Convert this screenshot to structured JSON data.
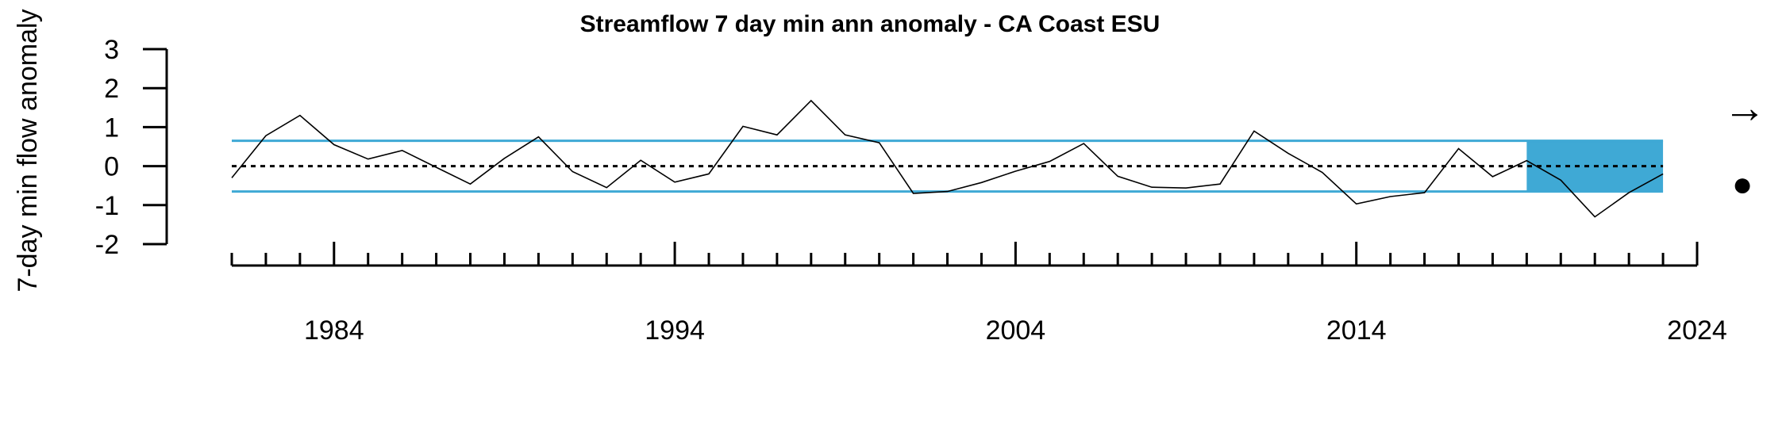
{
  "chart_data": {
    "type": "line",
    "title": "Streamflow 7 day min ann anomaly - CA Coast ESU",
    "xlabel": "",
    "ylabel": "7-day min flow anomaly",
    "xlim": [
      1981,
      2024
    ],
    "ylim": [
      -2,
      3
    ],
    "y_ticks": [
      3,
      2,
      1,
      0,
      -1,
      -2
    ],
    "x_major_ticks": [
      1984,
      1994,
      2004,
      2014,
      2024
    ],
    "x_minor_ticks": [
      1981,
      1982,
      1983,
      1984,
      1985,
      1986,
      1987,
      1988,
      1989,
      1990,
      1991,
      1992,
      1993,
      1994,
      1995,
      1996,
      1997,
      1998,
      1999,
      2000,
      2001,
      2002,
      2003,
      2004,
      2005,
      2006,
      2007,
      2008,
      2009,
      2010,
      2011,
      2012,
      2013,
      2014,
      2015,
      2016,
      2017,
      2018,
      2019,
      2020,
      2021,
      2022,
      2023,
      2024
    ],
    "series": [
      {
        "x": [
          1981,
          1982,
          1983,
          1984,
          1985,
          1986,
          1987,
          1988,
          1989,
          1990,
          1991,
          1992,
          1993,
          1994,
          1995,
          1996,
          1997,
          1998,
          1999,
          2000,
          2001,
          2002,
          2003,
          2004,
          2005,
          2006,
          2007,
          2008,
          2009,
          2010,
          2011,
          2012,
          2013,
          2014,
          2015,
          2016,
          2017,
          2018,
          2019,
          2020,
          2021,
          2022,
          2023
        ],
        "values": [
          -0.3,
          0.78,
          1.3,
          0.55,
          0.18,
          0.4,
          -0.03,
          -0.46,
          0.2,
          0.75,
          -0.14,
          -0.55,
          0.15,
          -0.41,
          -0.2,
          1.02,
          0.8,
          1.68,
          0.8,
          0.6,
          -0.7,
          -0.65,
          -0.42,
          -0.13,
          0.12,
          0.58,
          -0.26,
          -0.54,
          -0.56,
          -0.46,
          0.9,
          0.33,
          -0.16,
          -0.97,
          -0.78,
          -0.68,
          0.45,
          -0.27,
          0.14,
          -0.36,
          -1.3,
          -0.68,
          -0.2
        ]
      }
    ],
    "mean_line": 0,
    "sd_band": [
      -0.65,
      0.65
    ],
    "recent_period": [
      2019,
      2023
    ],
    "colors": {
      "band": "#3FA9D5",
      "line": "#000000"
    },
    "trend_symbol": "→",
    "mean_symbol": "●"
  }
}
